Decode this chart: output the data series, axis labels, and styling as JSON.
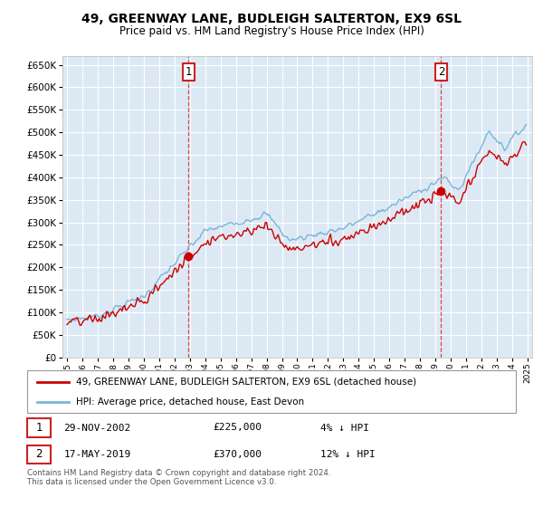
{
  "title1": "49, GREENWAY LANE, BUDLEIGH SALTERTON, EX9 6SL",
  "title2": "Price paid vs. HM Land Registry's House Price Index (HPI)",
  "bg_color": "#dce9f5",
  "grid_color": "#ffffff",
  "hpi_color": "#7ab4d8",
  "price_color": "#cc0000",
  "marker_color": "#cc0000",
  "sale1_date_num": 2002.92,
  "sale1_price": 225000,
  "sale2_date_num": 2019.37,
  "sale2_price": 370000,
  "legend1": "49, GREENWAY LANE, BUDLEIGH SALTERTON, EX9 6SL (detached house)",
  "legend2": "HPI: Average price, detached house, East Devon",
  "table_row1": [
    "1",
    "29-NOV-2002",
    "£225,000",
    "4% ↓ HPI"
  ],
  "table_row2": [
    "2",
    "17-MAY-2019",
    "£370,000",
    "12% ↓ HPI"
  ],
  "footer": "Contains HM Land Registry data © Crown copyright and database right 2024.\nThis data is licensed under the Open Government Licence v3.0.",
  "ylim": [
    0,
    670000
  ],
  "yticks": [
    0,
    50000,
    100000,
    150000,
    200000,
    250000,
    300000,
    350000,
    400000,
    450000,
    500000,
    550000,
    600000,
    650000
  ],
  "year_start": 1995,
  "year_end": 2025
}
